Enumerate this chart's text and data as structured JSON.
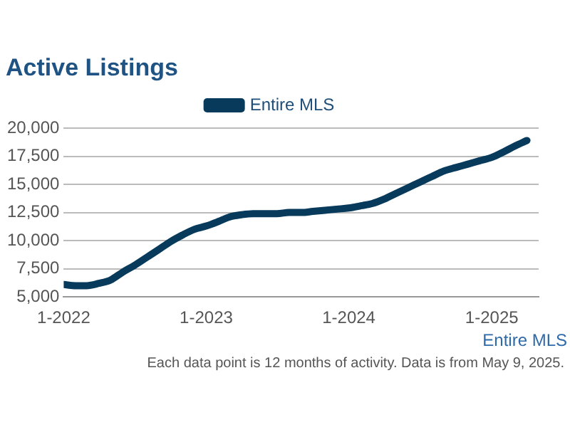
{
  "chart_data": {
    "type": "line",
    "title": "Active Listings",
    "x": [
      "2022-01",
      "2022-02",
      "2022-03",
      "2022-04",
      "2022-05",
      "2022-06",
      "2022-07",
      "2022-08",
      "2022-09",
      "2022-10",
      "2022-11",
      "2022-12",
      "2023-01",
      "2023-02",
      "2023-03",
      "2023-04",
      "2023-05",
      "2023-06",
      "2023-07",
      "2023-08",
      "2023-09",
      "2023-10",
      "2023-11",
      "2023-12",
      "2024-01",
      "2024-02",
      "2024-03",
      "2024-04",
      "2024-05",
      "2024-06",
      "2024-07",
      "2024-08",
      "2024-09",
      "2024-10",
      "2024-11",
      "2024-12",
      "2025-01",
      "2025-02",
      "2025-03",
      "2025-04"
    ],
    "series": [
      {
        "name": "Entire MLS",
        "color": "#083a5c",
        "values": [
          6100,
          6000,
          6000,
          6200,
          6500,
          7200,
          7800,
          8500,
          9200,
          9900,
          10500,
          11000,
          11300,
          11700,
          12100,
          12300,
          12400,
          12400,
          12400,
          12500,
          12500,
          12600,
          12700,
          12800,
          12900,
          13100,
          13300,
          13700,
          14200,
          14700,
          15200,
          15700,
          16200,
          16500,
          16800,
          17100,
          17400,
          17900,
          18400,
          18900
        ]
      }
    ],
    "xlim": [
      "2022-01",
      "2025-05"
    ],
    "xticks": [
      {
        "value": "2022-01",
        "label": "1-2022"
      },
      {
        "value": "2023-01",
        "label": "1-2023"
      },
      {
        "value": "2024-01",
        "label": "1-2024"
      },
      {
        "value": "2025-01",
        "label": "1-2025"
      }
    ],
    "ylim": [
      5000,
      20000
    ],
    "yticks": [
      {
        "value": 5000,
        "label": "5,000"
      },
      {
        "value": 7500,
        "label": "7,500"
      },
      {
        "value": 10000,
        "label": "10,000"
      },
      {
        "value": 12500,
        "label": "12,500"
      },
      {
        "value": 15000,
        "label": "15,000"
      },
      {
        "value": 17500,
        "label": "17,500"
      },
      {
        "value": 20000,
        "label": "20,000"
      }
    ],
    "grid": "y",
    "legend": "top",
    "marker": "none",
    "line_style": "solid",
    "annotations": [
      "Entire MLS",
      "Each data point is 12 months of activity. Data is from May 9, 2025."
    ]
  }
}
